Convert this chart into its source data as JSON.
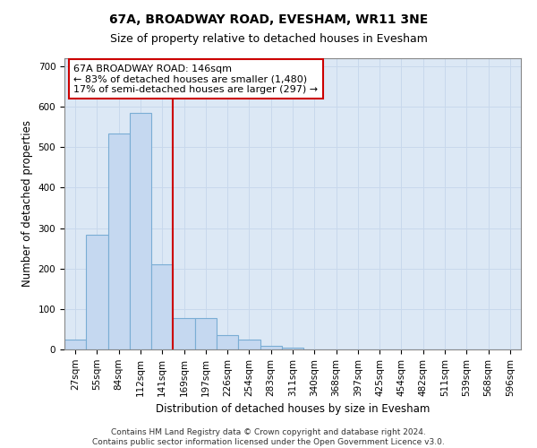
{
  "title": "67A, BROADWAY ROAD, EVESHAM, WR11 3NE",
  "subtitle": "Size of property relative to detached houses in Evesham",
  "xlabel": "Distribution of detached houses by size in Evesham",
  "ylabel": "Number of detached properties",
  "bin_labels": [
    "27sqm",
    "55sqm",
    "84sqm",
    "112sqm",
    "141sqm",
    "169sqm",
    "197sqm",
    "226sqm",
    "254sqm",
    "283sqm",
    "311sqm",
    "340sqm",
    "368sqm",
    "397sqm",
    "425sqm",
    "454sqm",
    "482sqm",
    "511sqm",
    "539sqm",
    "568sqm",
    "596sqm"
  ],
  "bar_values": [
    25,
    283,
    535,
    585,
    210,
    78,
    78,
    35,
    25,
    8,
    5,
    0,
    0,
    0,
    0,
    0,
    0,
    0,
    0,
    0,
    0
  ],
  "bar_color": "#c5d8f0",
  "bar_edge_color": "#7aadd4",
  "property_line_x": 4.5,
  "property_sqm": 146,
  "annotation_text": "67A BROADWAY ROAD: 146sqm\n← 83% of detached houses are smaller (1,480)\n17% of semi-detached houses are larger (297) →",
  "annotation_box_color": "#ffffff",
  "annotation_box_edge_color": "#cc0000",
  "property_line_color": "#cc0000",
  "ylim": [
    0,
    720
  ],
  "yticks": [
    0,
    100,
    200,
    300,
    400,
    500,
    600,
    700
  ],
  "grid_color": "#c8d8ec",
  "background_color": "#dce8f5",
  "footer_line1": "Contains HM Land Registry data © Crown copyright and database right 2024.",
  "footer_line2": "Contains public sector information licensed under the Open Government Licence v3.0.",
  "title_fontsize": 10,
  "subtitle_fontsize": 9,
  "axis_label_fontsize": 8.5,
  "tick_fontsize": 7.5,
  "annotation_fontsize": 8,
  "footer_fontsize": 6.5
}
